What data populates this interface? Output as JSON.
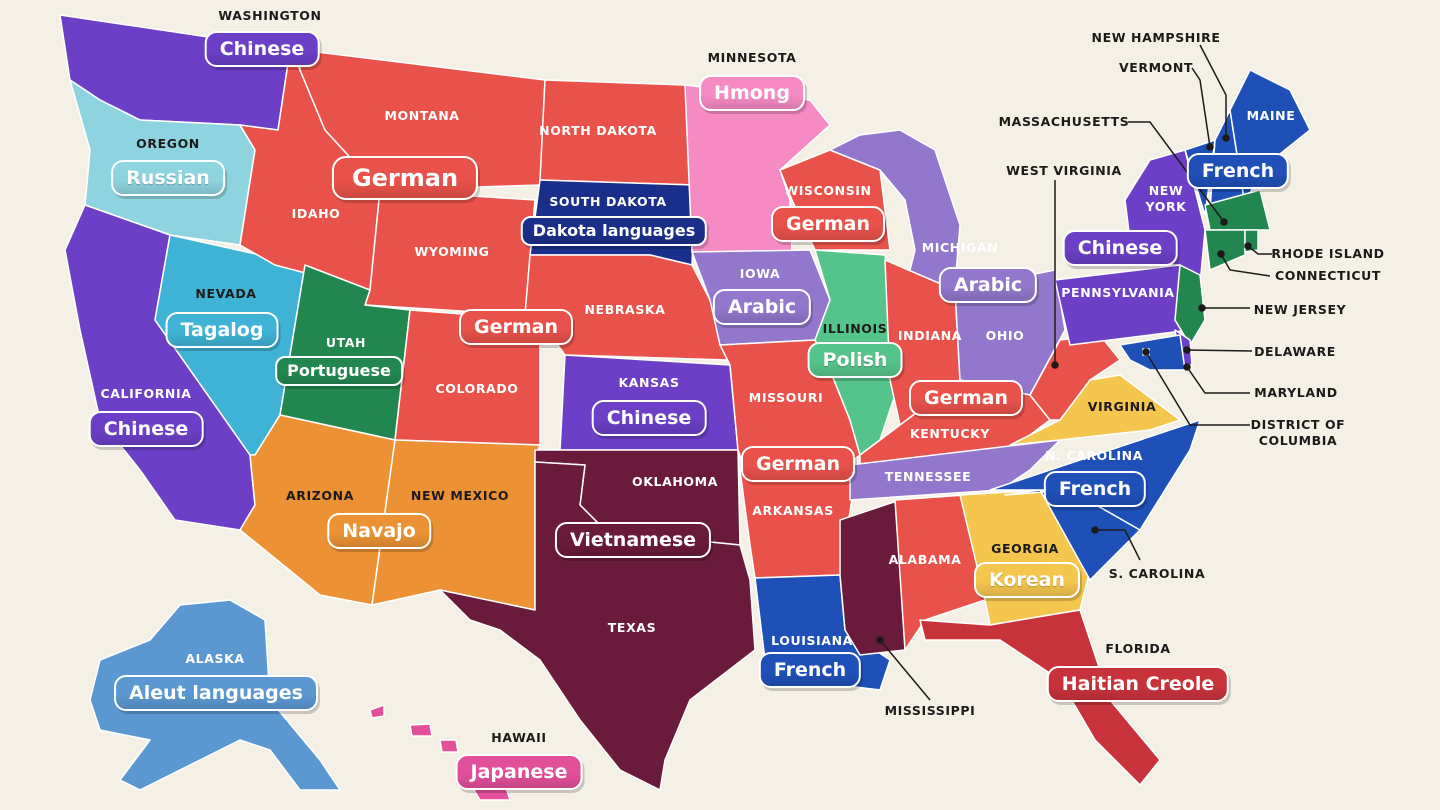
{
  "colors": {
    "background": "#f4f0e6",
    "german": "#e8524a",
    "chinese": "#6c3fc6",
    "russian": "#8ed4e0",
    "tagalog": "#3fb3d6",
    "portuguese": "#22874f",
    "navajo": "#ec9235",
    "vietnamese": "#6a1a3a",
    "dakota": "#1a2f8a",
    "hmong": "#f68ac5",
    "arabic": "#9277cc",
    "polish": "#55c48a",
    "french": "#1f50b8",
    "korean": "#f4c64e",
    "haitian_creole": "#c8323a",
    "aleut": "#5b98d2",
    "japanese": "#e24f9a"
  },
  "states": [
    {
      "name": "WASHINGTON",
      "color": "chinese"
    },
    {
      "name": "OREGON",
      "color": "russian"
    },
    {
      "name": "CALIFORNIA",
      "color": "chinese"
    },
    {
      "name": "NEVADA",
      "color": "tagalog"
    },
    {
      "name": "IDAHO",
      "color": "german"
    },
    {
      "name": "MONTANA",
      "color": "german"
    },
    {
      "name": "WYOMING",
      "color": "german"
    },
    {
      "name": "UTAH",
      "color": "portuguese"
    },
    {
      "name": "COLORADO",
      "color": "german"
    },
    {
      "name": "ARIZONA",
      "color": "navajo"
    },
    {
      "name": "NEW MEXICO",
      "color": "navajo"
    },
    {
      "name": "NORTH DAKOTA",
      "color": "german"
    },
    {
      "name": "SOUTH DAKOTA",
      "color": "dakota"
    },
    {
      "name": "NEBRASKA",
      "color": "german"
    },
    {
      "name": "KANSAS",
      "color": "chinese"
    },
    {
      "name": "OKLAHOMA",
      "color": "vietnamese"
    },
    {
      "name": "TEXAS",
      "color": "vietnamese"
    },
    {
      "name": "MINNESOTA",
      "color": "hmong"
    },
    {
      "name": "IOWA",
      "color": "arabic"
    },
    {
      "name": "MISSOURI",
      "color": "german"
    },
    {
      "name": "ARKANSAS",
      "color": "german"
    },
    {
      "name": "LOUISIANA",
      "color": "french"
    },
    {
      "name": "WISCONSIN",
      "color": "german"
    },
    {
      "name": "ILLINOIS",
      "color": "polish"
    },
    {
      "name": "MICHIGAN",
      "color": "arabic"
    },
    {
      "name": "INDIANA",
      "color": "german"
    },
    {
      "name": "OHIO",
      "color": "arabic"
    },
    {
      "name": "KENTUCKY",
      "color": "german"
    },
    {
      "name": "TENNESSEE",
      "color": "arabic"
    },
    {
      "name": "MISSISSIPPI",
      "color": "vietnamese"
    },
    {
      "name": "ALABAMA",
      "color": "german"
    },
    {
      "name": "GEORGIA",
      "color": "korean"
    },
    {
      "name": "FLORIDA",
      "color": "haitian_creole"
    },
    {
      "name": "S. CAROLINA",
      "color": "french"
    },
    {
      "name": "N. CAROLINA",
      "color": "french"
    },
    {
      "name": "VIRGINIA",
      "color": "korean"
    },
    {
      "name": "WEST VIRGINIA",
      "color": "german"
    },
    {
      "name": "PENNSYLVANIA",
      "color": "chinese"
    },
    {
      "name": "NEW YORK",
      "color": "chinese"
    },
    {
      "name": "VERMONT",
      "color": "french"
    },
    {
      "name": "NEW HAMPSHIRE",
      "color": "french"
    },
    {
      "name": "MAINE",
      "color": "french"
    },
    {
      "name": "MASSACHUSETTS",
      "color": "portuguese"
    },
    {
      "name": "CONNECTICUT",
      "color": "portuguese"
    },
    {
      "name": "RHODE ISLAND",
      "color": "portuguese"
    },
    {
      "name": "NEW JERSEY",
      "color": "portuguese"
    },
    {
      "name": "DELAWARE",
      "color": "chinese"
    },
    {
      "name": "MARYLAND",
      "color": "french"
    },
    {
      "name": "DISTRICT OF COLUMBIA",
      "color": "french"
    },
    {
      "name": "ALASKA",
      "color": "aleut"
    },
    {
      "name": "HAWAII",
      "color": "japanese"
    }
  ],
  "language_labels": [
    {
      "text": "Chinese",
      "color": "chinese"
    },
    {
      "text": "Russian",
      "color": "russian"
    },
    {
      "text": "German",
      "color": "german"
    },
    {
      "text": "Hmong",
      "color": "hmong"
    },
    {
      "text": "Dakota languages",
      "color": "dakota"
    },
    {
      "text": "German",
      "color": "german"
    },
    {
      "text": "Chinese",
      "color": "chinese"
    },
    {
      "text": "French",
      "color": "french"
    },
    {
      "text": "Arabic",
      "color": "arabic"
    },
    {
      "text": "Arabic",
      "color": "arabic"
    },
    {
      "text": "Tagalog",
      "color": "tagalog"
    },
    {
      "text": "German",
      "color": "german"
    },
    {
      "text": "Portuguese",
      "color": "portuguese"
    },
    {
      "text": "Polish",
      "color": "polish"
    },
    {
      "text": "Chinese",
      "color": "chinese"
    },
    {
      "text": "Chinese",
      "color": "chinese"
    },
    {
      "text": "German",
      "color": "german"
    },
    {
      "text": "German",
      "color": "german"
    },
    {
      "text": "French",
      "color": "french"
    },
    {
      "text": "Navajo",
      "color": "navajo"
    },
    {
      "text": "Vietnamese",
      "color": "vietnamese"
    },
    {
      "text": "Korean",
      "color": "korean"
    },
    {
      "text": "French",
      "color": "french"
    },
    {
      "text": "Aleut languages",
      "color": "aleut"
    },
    {
      "text": "Haitian Creole",
      "color": "haitian_creole"
    },
    {
      "text": "Japanese",
      "color": "japanese"
    }
  ]
}
